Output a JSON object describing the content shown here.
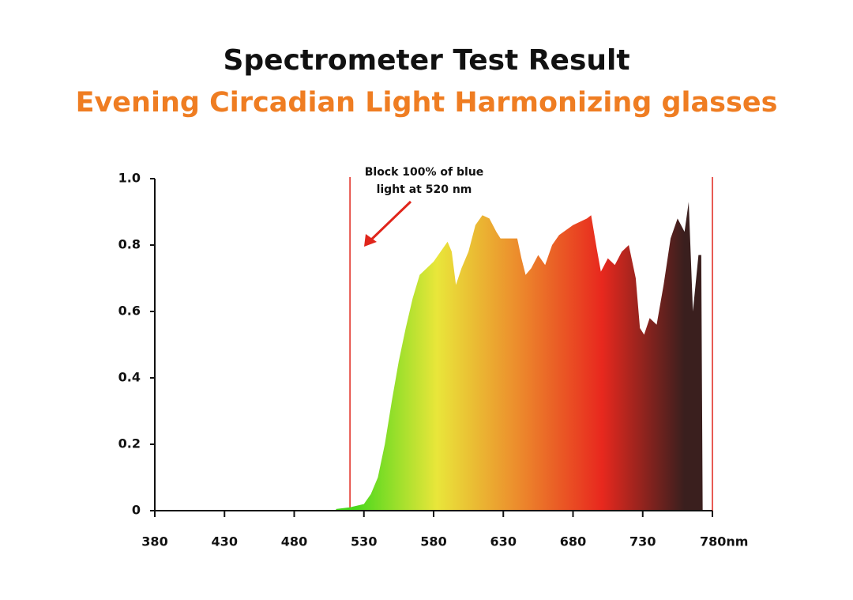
{
  "chart_data": {
    "type": "area",
    "title": "Spectrometer Test Result",
    "subtitle": "Evening Circadian Light Harmonizing glasses",
    "annotation": [
      "Block 100% of blue",
      "light at 520 nm"
    ],
    "annotation_color": "#e0251b",
    "x": [
      510,
      520,
      530,
      535,
      540,
      545,
      550,
      555,
      560,
      565,
      570,
      575,
      580,
      585,
      590,
      593,
      596,
      600,
      605,
      610,
      615,
      620,
      625,
      628,
      635,
      640,
      643,
      646,
      650,
      655,
      660,
      665,
      670,
      680,
      690,
      693,
      697,
      700,
      705,
      710,
      715,
      720,
      725,
      728,
      731,
      735,
      740,
      745,
      750,
      755,
      760,
      763,
      766,
      770,
      772,
      773
    ],
    "values": [
      0.005,
      0.01,
      0.02,
      0.05,
      0.1,
      0.2,
      0.33,
      0.45,
      0.55,
      0.64,
      0.71,
      0.73,
      0.75,
      0.78,
      0.81,
      0.78,
      0.68,
      0.73,
      0.78,
      0.86,
      0.89,
      0.88,
      0.84,
      0.82,
      0.82,
      0.82,
      0.76,
      0.71,
      0.73,
      0.77,
      0.74,
      0.8,
      0.83,
      0.86,
      0.88,
      0.89,
      0.79,
      0.72,
      0.76,
      0.74,
      0.78,
      0.8,
      0.7,
      0.55,
      0.53,
      0.58,
      0.56,
      0.68,
      0.82,
      0.88,
      0.84,
      0.93,
      0.6,
      0.77,
      0.77,
      0
    ],
    "gradient_colors": [
      "#48d81c",
      "#e9e63a",
      "#ec8a2c",
      "#e8281e",
      "#3a1f1e"
    ],
    "markers": [
      520,
      780
    ],
    "marker_color": "#e0251b",
    "xlim": [
      380,
      780
    ],
    "xticks": [
      380,
      430,
      480,
      530,
      580,
      630,
      680,
      730,
      {
        "value": 780,
        "label": "780nm"
      }
    ],
    "ylim": [
      0,
      1
    ],
    "yticks": [
      0,
      0.2,
      0.4,
      0.6,
      0.8,
      {
        "value": 1,
        "label": "1.0"
      }
    ]
  }
}
